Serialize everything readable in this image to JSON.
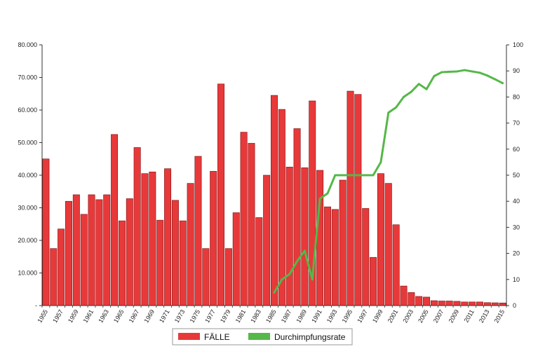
{
  "chart_data": {
    "type": "bar",
    "title": "",
    "xlabel": "",
    "ylabel": "",
    "x_tick_labels": [
      "1955",
      "1957",
      "1959",
      "1961",
      "1963",
      "1965",
      "1967",
      "1969",
      "1971",
      "1973",
      "1975",
      "1977",
      "1979",
      "1981",
      "1983",
      "1985",
      "1987",
      "1989",
      "1991",
      "1993",
      "1995",
      "1997",
      "1999",
      "2001",
      "2003",
      "2005",
      "2007",
      "2009",
      "2011",
      "2013",
      "2015"
    ],
    "y_left_ticks": [
      "-",
      "10.000",
      "20.000",
      "30.000",
      "40.000",
      "50.000",
      "60.000",
      "70.000",
      "80.000"
    ],
    "y_right_ticks": [
      "0",
      "10",
      "20",
      "30",
      "40",
      "50",
      "60",
      "70",
      "80",
      "90",
      "100"
    ],
    "ylim_left": [
      0,
      80000
    ],
    "ylim_right": [
      0,
      100
    ],
    "grid": false,
    "legend_position": "bottom-center",
    "series": [
      {
        "name": "FÄLLE",
        "type": "bar",
        "axis": "left",
        "color": "#e8393a",
        "x": [
          1955,
          1956,
          1957,
          1958,
          1959,
          1960,
          1961,
          1962,
          1963,
          1964,
          1965,
          1966,
          1967,
          1968,
          1969,
          1970,
          1971,
          1972,
          1973,
          1974,
          1975,
          1976,
          1977,
          1978,
          1979,
          1980,
          1981,
          1982,
          1983,
          1984,
          1985,
          1986,
          1987,
          1988,
          1989,
          1990,
          1991,
          1992,
          1993,
          1994,
          1995,
          1996,
          1997,
          1998,
          1999,
          2000,
          2001,
          2002,
          2003,
          2004,
          2005,
          2006,
          2007,
          2008,
          2009,
          2010,
          2011,
          2012,
          2013,
          2014,
          2015
        ],
        "values": [
          45000,
          17500,
          23500,
          32000,
          34000,
          28000,
          34000,
          32500,
          34000,
          52500,
          26000,
          32800,
          48500,
          40500,
          41000,
          26200,
          42000,
          32300,
          26000,
          37500,
          45800,
          17500,
          41200,
          68000,
          17500,
          28500,
          53200,
          49800,
          27000,
          40000,
          64500,
          60200,
          42500,
          54300,
          42300,
          62800,
          41500,
          30300,
          29500,
          38500,
          65800,
          64800,
          29800,
          14800,
          40500,
          37500,
          24800,
          6000,
          4000,
          2800,
          2600,
          1500,
          1400,
          1400,
          1300,
          1100,
          1100,
          1100,
          900,
          850,
          800
        ]
      },
      {
        "name": "Durchimpfungsrate",
        "type": "line",
        "axis": "right",
        "color": "#55b848",
        "x": [
          1985,
          1986,
          1987,
          1988,
          1989,
          1990,
          1991,
          1992,
          1993,
          1994,
          1995,
          1996,
          1997,
          1998,
          1999,
          2000,
          2001,
          2002,
          2003,
          2004,
          2005,
          2006,
          2007,
          2008,
          2009,
          2010,
          2011,
          2012,
          2013,
          2014,
          2015
        ],
        "values": [
          5,
          10,
          12,
          17,
          21,
          10,
          41,
          43,
          50,
          50,
          50,
          50,
          50,
          50,
          55,
          74,
          76,
          80,
          82,
          85,
          83,
          88,
          89.5,
          89.7,
          89.8,
          90.3,
          89.8,
          89.3,
          88.2,
          86.8,
          85.3
        ]
      }
    ]
  }
}
